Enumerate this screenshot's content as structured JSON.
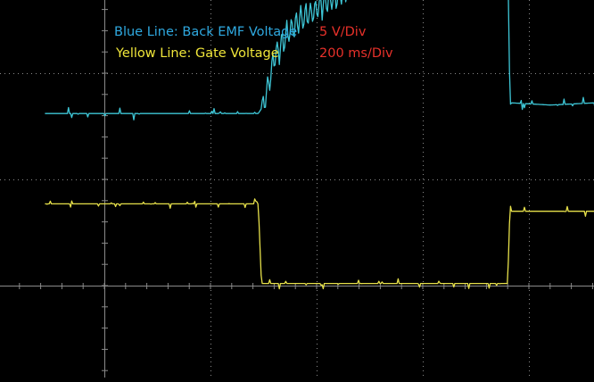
{
  "legend": {
    "blue_label": "Blue Line: Back EMF Voltage",
    "yellow_label": "Yellow Line: Gate Voltage",
    "volts_per_div": "5 V/Div",
    "time_per_div": "200 ms/Div"
  },
  "colors": {
    "background": "#000000",
    "grid": "#8a8a8a",
    "blue_trace": "#3ec6d6",
    "yellow_trace": "#e6e04a",
    "blue_text": "#2fa9e0",
    "yellow_text": "#f0e63a",
    "red_text": "#e8312a"
  },
  "chart_data": {
    "type": "line",
    "title": "",
    "xlabel": "",
    "ylabel": "",
    "units": {
      "x": "divisions (200 ms/Div)",
      "y": "divisions (5 V/Div)"
    },
    "grid": true,
    "grid_style": "dotted graticule with center crosshair",
    "x_range_div": [
      -0.56,
      5.87
    ],
    "y_range_div": [
      -4.19,
      5.0
    ],
    "series": [
      {
        "name": "Blue Line: Back EMF Voltage",
        "color": "#3ec6d6",
        "x": [
          -0.56,
          1.45,
          1.5,
          1.56,
          1.6,
          1.68,
          1.75,
          1.85,
          2.0,
          2.3,
          2.9,
          3.2,
          3.3,
          3.45,
          3.52,
          3.78,
          3.81,
          3.82,
          3.85,
          4.2,
          4.6,
          4.9,
          5.2,
          5.5,
          5.87
        ],
        "y": [
          1.62,
          1.62,
          1.7,
          1.95,
          2.15,
          2.3,
          2.4,
          2.5,
          2.6,
          2.8,
          3.05,
          3.15,
          3.15,
          3.27,
          3.45,
          3.55,
          2.6,
          1.72,
          1.72,
          1.7,
          1.72,
          1.7,
          1.72,
          1.7,
          1.7
        ],
        "noise_amplitude_div": 0.06,
        "ripple_segment_x": [
          1.48,
          3.8
        ],
        "ripple_amplitude_div": 0.15
      },
      {
        "name": "Yellow Line: Gate Voltage",
        "color": "#e6e04a",
        "x": [
          -0.56,
          1.45,
          1.48,
          3.8,
          3.82,
          5.87
        ],
        "y": [
          0.77,
          0.77,
          0.02,
          0.02,
          0.7,
          0.7
        ],
        "noise_amplitude_div": 0.05
      }
    ]
  }
}
